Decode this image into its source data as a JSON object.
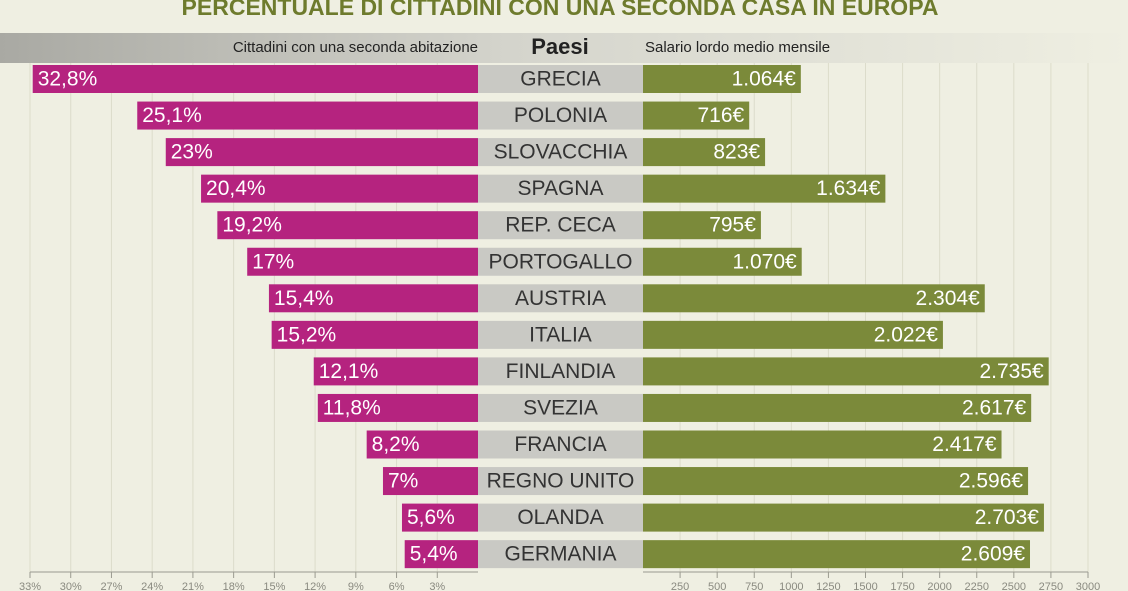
{
  "title": "PERCENTUALE DI CITTADINI CON UNA SECONDA CASA IN EUROPA",
  "chart_data": [
    {
      "type": "bar",
      "orientation": "horizontal",
      "direction": "left",
      "title": "Cittadini con una seconda abitazione",
      "category_title": "Paesi",
      "categories": [
        "GRECIA",
        "POLONIA",
        "SLOVACCHIA",
        "SPAGNA",
        "REP. CECA",
        "PORTOGALLO",
        "AUSTRIA",
        "ITALIA",
        "FINLANDIA",
        "SVEZIA",
        "FRANCIA",
        "REGNO UNITO",
        "OLANDA",
        "GERMANIA"
      ],
      "values": [
        32.8,
        25.1,
        23,
        20.4,
        19.2,
        17,
        15.4,
        15.2,
        12.1,
        11.8,
        8.2,
        7,
        5.6,
        5.4
      ],
      "value_labels": [
        "32,8%",
        "25,1%",
        "23%",
        "20,4%",
        "19,2%",
        "17%",
        "15,4%",
        "15,2%",
        "12,1%",
        "11,8%",
        "8,2%",
        "7%",
        "5,6%",
        "5,4%"
      ],
      "color": "#b5237f",
      "xlim": [
        0,
        33
      ],
      "xticks": [
        {
          "value": 3,
          "label": "3%"
        },
        {
          "value": 6,
          "label": "6%"
        },
        {
          "value": 9,
          "label": "9%"
        },
        {
          "value": 12,
          "label": "12%"
        },
        {
          "value": 15,
          "label": "15%"
        },
        {
          "value": 18,
          "label": "18%"
        },
        {
          "value": 21,
          "label": "21%"
        },
        {
          "value": 24,
          "label": "24%"
        },
        {
          "value": 27,
          "label": "27%"
        },
        {
          "value": 30,
          "label": "30%"
        },
        {
          "value": 33,
          "label": "33%"
        }
      ],
      "grid": true
    },
    {
      "type": "bar",
      "orientation": "horizontal",
      "direction": "right",
      "title": "Salario lordo medio mensile",
      "values": [
        1064,
        716,
        823,
        1634,
        795,
        1070,
        2304,
        2022,
        2735,
        2617,
        2417,
        2596,
        2703,
        2609
      ],
      "value_labels": [
        "1.064€",
        "716€",
        "823€",
        "1.634€",
        "795€",
        "1.070€",
        "2.304€",
        "2.022€",
        "2.735€",
        "2.617€",
        "2.417€",
        "2.596€",
        "2.703€",
        "2.609€"
      ],
      "color": "#7b8a3a",
      "xlim": [
        0,
        3000
      ],
      "xticks": [
        250,
        500,
        750,
        1000,
        1250,
        1500,
        1750,
        2000,
        2250,
        2500,
        2750,
        3000
      ],
      "grid": true
    }
  ]
}
